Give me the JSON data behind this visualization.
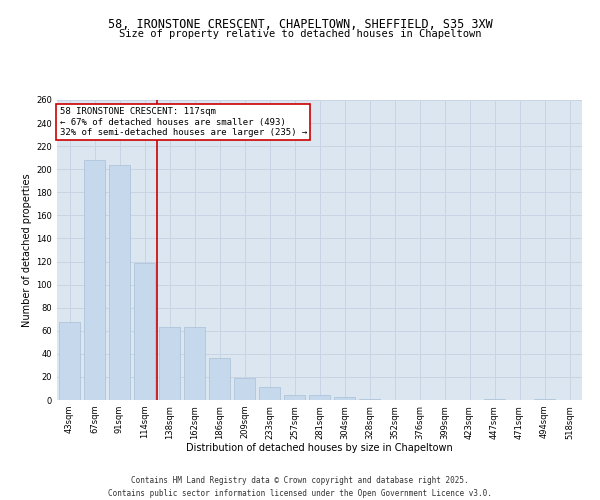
{
  "title_line1": "58, IRONSTONE CRESCENT, CHAPELTOWN, SHEFFIELD, S35 3XW",
  "title_line2": "Size of property relative to detached houses in Chapeltown",
  "xlabel": "Distribution of detached houses by size in Chapeltown",
  "ylabel": "Number of detached properties",
  "bar_labels": [
    "43sqm",
    "67sqm",
    "91sqm",
    "114sqm",
    "138sqm",
    "162sqm",
    "186sqm",
    "209sqm",
    "233sqm",
    "257sqm",
    "281sqm",
    "304sqm",
    "328sqm",
    "352sqm",
    "376sqm",
    "399sqm",
    "423sqm",
    "447sqm",
    "471sqm",
    "494sqm",
    "518sqm"
  ],
  "bar_values": [
    68,
    208,
    204,
    119,
    63,
    63,
    36,
    19,
    11,
    4,
    4,
    3,
    1,
    0,
    0,
    0,
    0,
    1,
    0,
    1,
    0
  ],
  "bar_color": "#c5d8ec",
  "bar_edge_color": "#a8c0d8",
  "vline_x": 3.5,
  "vline_color": "#cc0000",
  "annotation_title": "58 IRONSTONE CRESCENT: 117sqm",
  "annotation_line2": "← 67% of detached houses are smaller (493)",
  "annotation_line3": "32% of semi-detached houses are larger (235) →",
  "annotation_box_color": "#cc0000",
  "ylim": [
    0,
    260
  ],
  "yticks": [
    0,
    20,
    40,
    60,
    80,
    100,
    120,
    140,
    160,
    180,
    200,
    220,
    240,
    260
  ],
  "grid_color": "#c8d4e4",
  "background_color": "#dce6f0",
  "footer_line1": "Contains HM Land Registry data © Crown copyright and database right 2025.",
  "footer_line2": "Contains public sector information licensed under the Open Government Licence v3.0.",
  "title_fontsize": 8.5,
  "subtitle_fontsize": 7.5,
  "axis_label_fontsize": 7,
  "tick_fontsize": 6,
  "annotation_fontsize": 6.5,
  "footer_fontsize": 5.5
}
